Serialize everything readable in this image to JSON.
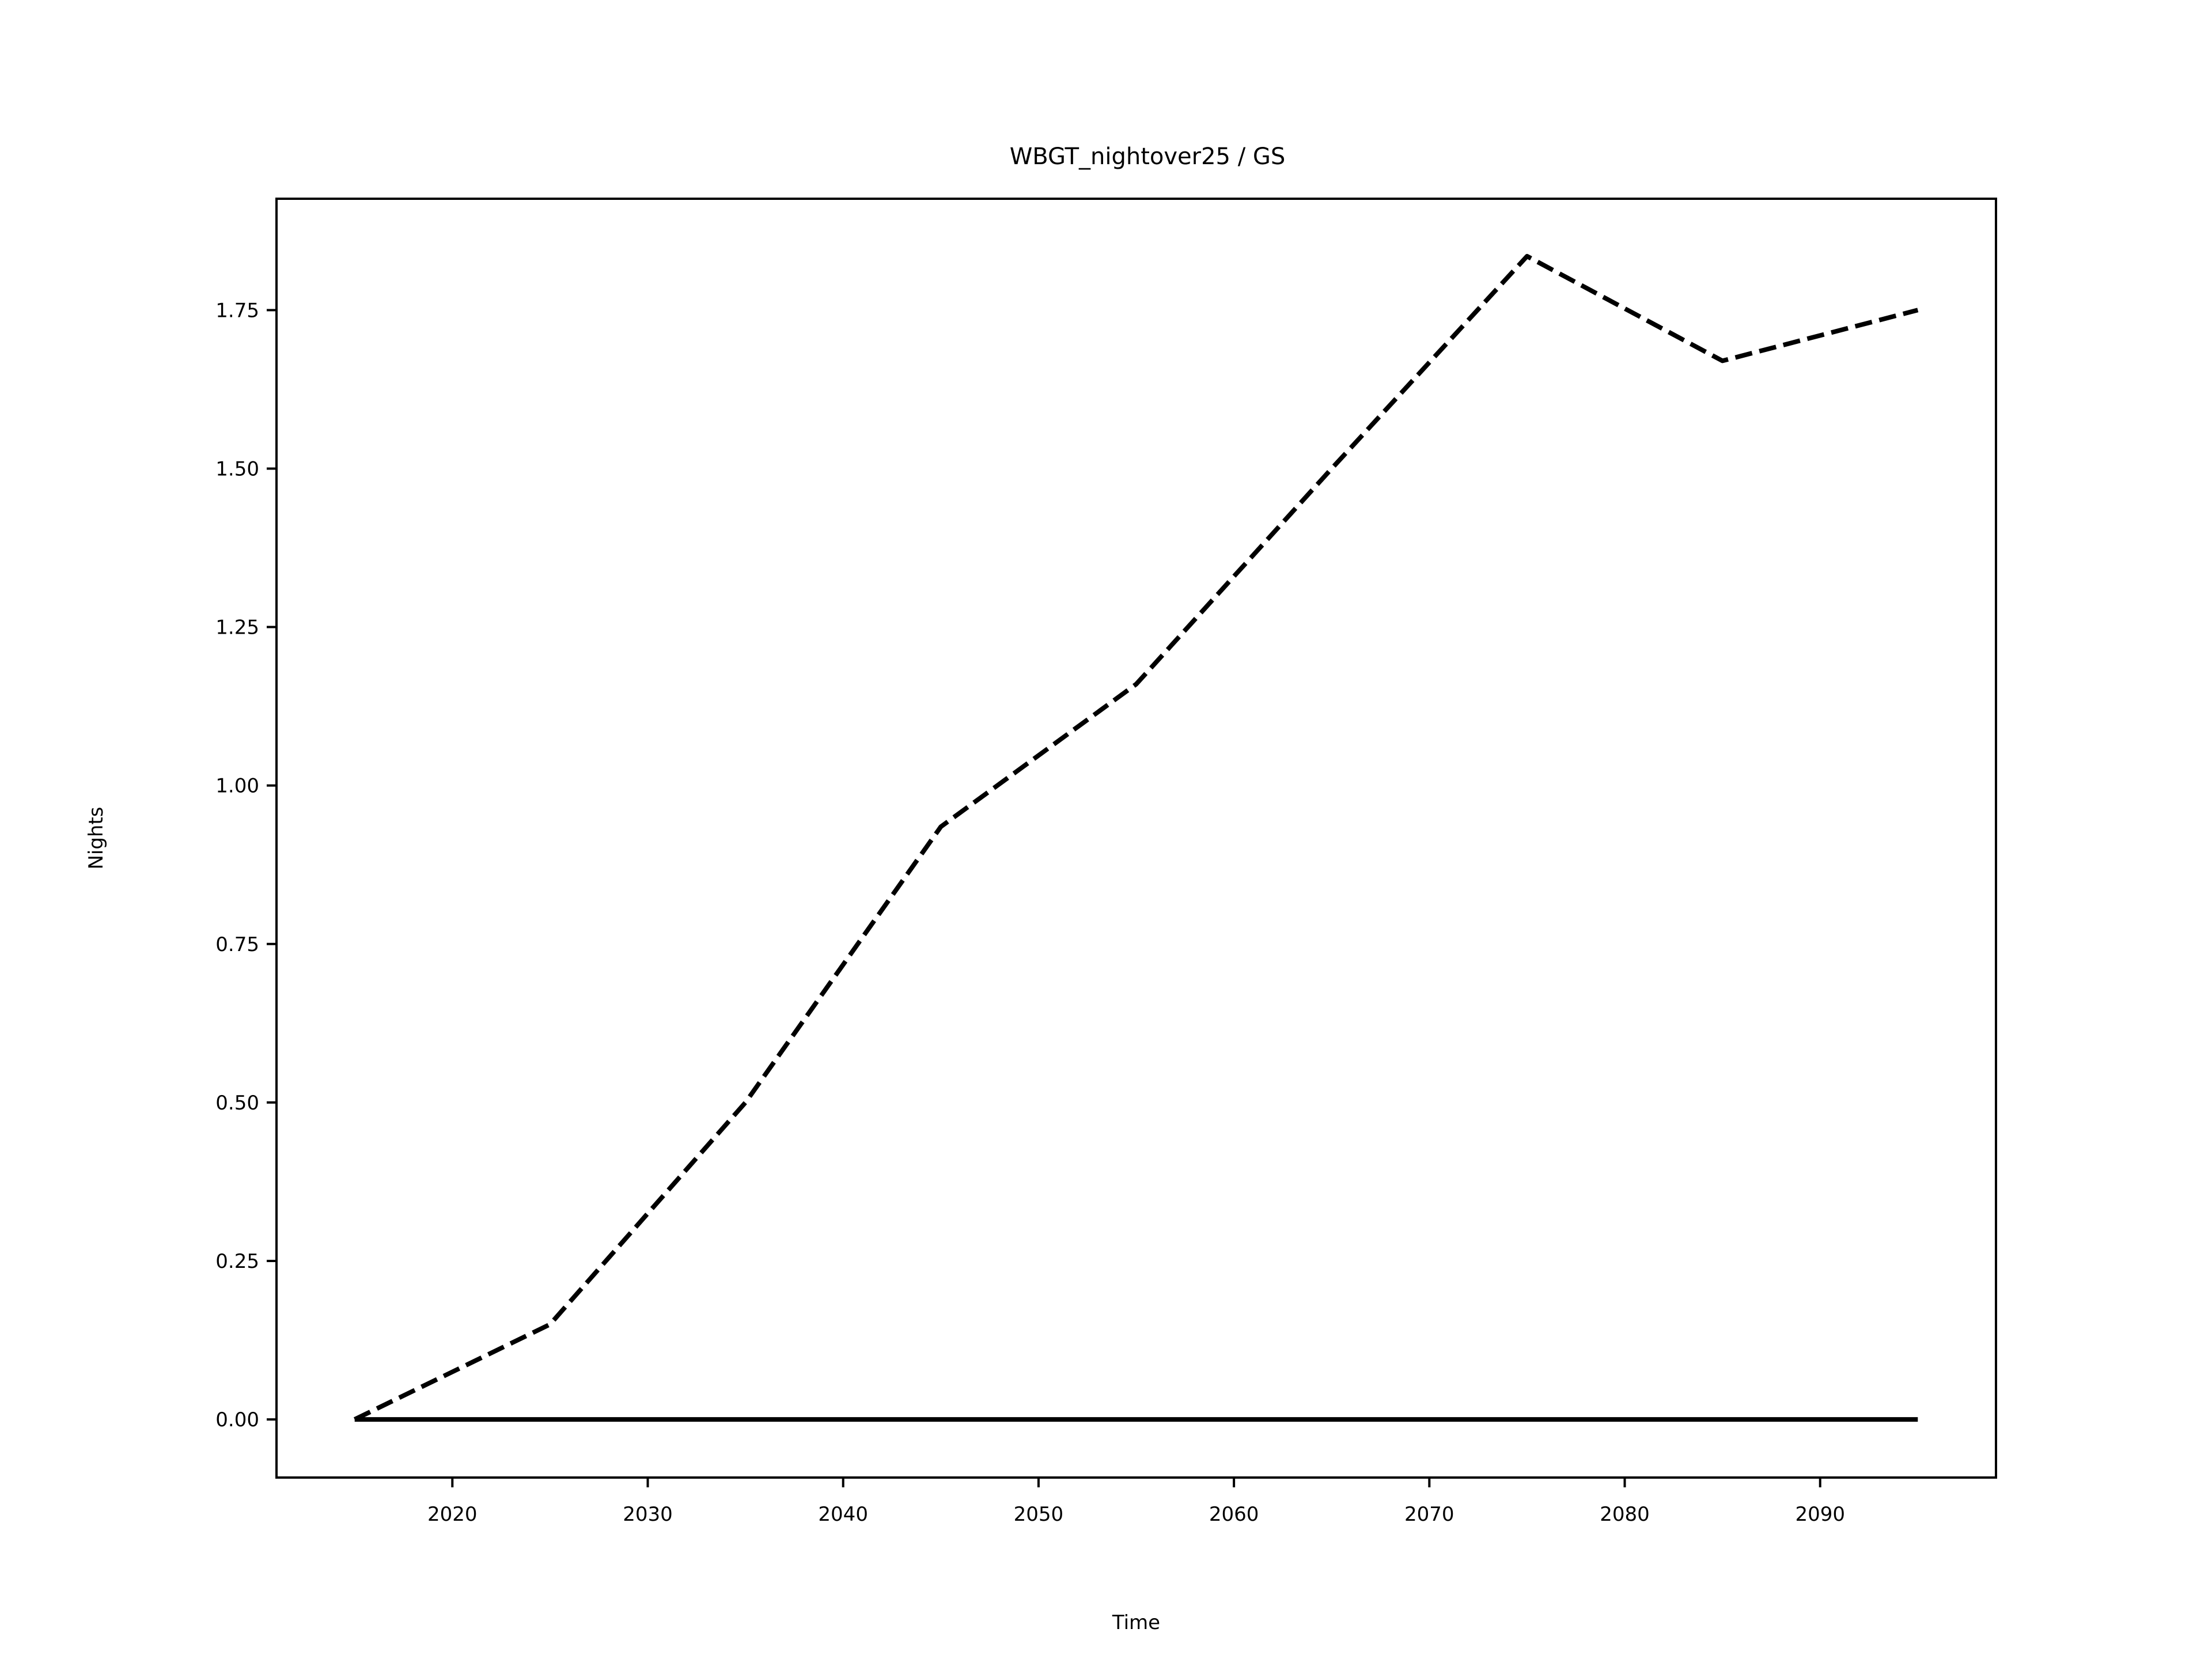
{
  "chart_data": {
    "type": "line",
    "title": "WBGT_nightover25 / GS",
    "xlabel": "Time",
    "ylabel": "Nights",
    "xlim": [
      2011,
      2099
    ],
    "ylim": [
      -0.0917,
      1.9257
    ],
    "x_ticks": [
      2020,
      2030,
      2040,
      2050,
      2060,
      2070,
      2080,
      2090
    ],
    "y_ticks": [
      0.0,
      0.25,
      0.5,
      0.75,
      1.0,
      1.25,
      1.5,
      1.75
    ],
    "y_tick_labels": [
      "0.00",
      "0.25",
      "0.50",
      "0.75",
      "1.00",
      "1.25",
      "1.50",
      "1.75"
    ],
    "x": [
      2015,
      2025,
      2035,
      2045,
      2055,
      2065,
      2075,
      2085,
      2095
    ],
    "series": [
      {
        "style": "dashed",
        "color": "#000000",
        "values": [
          0.0,
          0.15,
          0.5,
          0.935,
          1.16,
          1.5,
          1.835,
          1.67,
          1.75
        ]
      },
      {
        "style": "solid",
        "color": "#000000",
        "values": [
          0.0,
          0.0,
          0.0,
          0.0,
          0.0,
          0.0,
          0.0,
          0.0,
          0.0
        ]
      }
    ],
    "grid": false,
    "legend": "none"
  }
}
